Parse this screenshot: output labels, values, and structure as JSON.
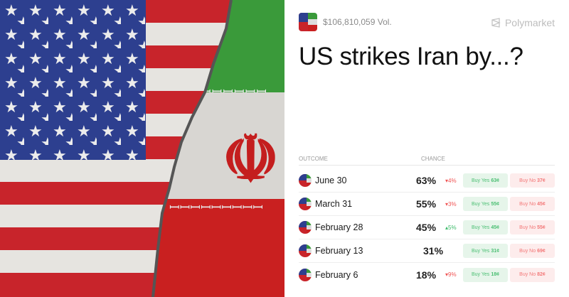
{
  "hero": {
    "image": "us-iran-cracked-flags"
  },
  "header": {
    "volume": "$106,810,059 Vol.",
    "brand": "Polymarket"
  },
  "title": "US strikes Iran by...?",
  "table": {
    "col_outcome": "OUTCOME",
    "col_chance": "CHANCE",
    "rows": [
      {
        "name": "June 30",
        "chance": "63%",
        "change": "4%",
        "dir": "down",
        "yes_label": "Buy Yes",
        "yes": "63¢",
        "no_label": "Buy No",
        "no": "37¢"
      },
      {
        "name": "March 31",
        "chance": "55%",
        "change": "3%",
        "dir": "down",
        "yes_label": "Buy Yes",
        "yes": "55¢",
        "no_label": "Buy No",
        "no": "45¢"
      },
      {
        "name": "February 28",
        "chance": "45%",
        "change": "5%",
        "dir": "up",
        "yes_label": "Buy Yes",
        "yes": "45¢",
        "no_label": "Buy No",
        "no": "55¢"
      },
      {
        "name": "February 13",
        "chance": "31%",
        "change": "",
        "dir": "",
        "yes_label": "Buy Yes",
        "yes": "31¢",
        "no_label": "Buy No",
        "no": "69¢"
      },
      {
        "name": "February 6",
        "chance": "18%",
        "change": "9%",
        "dir": "down",
        "yes_label": "Buy Yes",
        "yes": "18¢",
        "no_label": "Buy No",
        "no": "82¢"
      }
    ]
  },
  "colors": {
    "up": "#3dbb6a",
    "down": "#f05555",
    "yes_bg": "#e6f5ea",
    "no_bg": "#fdecec"
  }
}
